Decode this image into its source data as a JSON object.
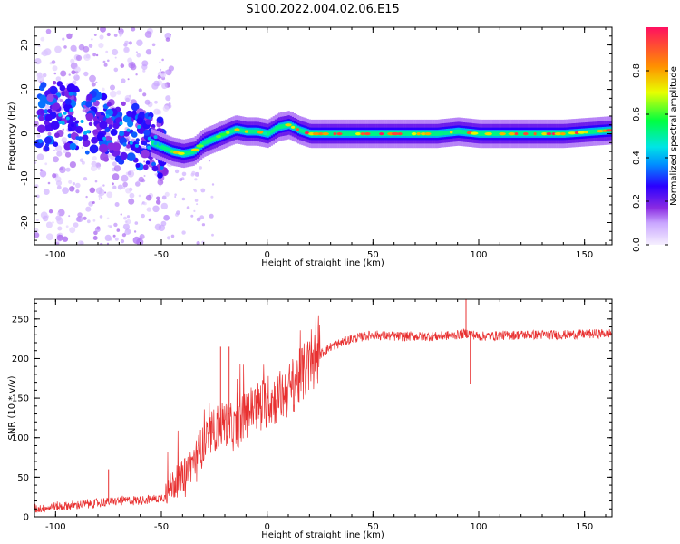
{
  "title": "S100.2022.004.02.06.E15",
  "colors": {
    "snr_line": "#e83030",
    "background": "#ffffff",
    "colormap": [
      "#f6f0ff",
      "#c9a6ff",
      "#8a2be2",
      "#2a00ff",
      "#0090ff",
      "#00e5e5",
      "#00ff40",
      "#e8ff00",
      "#ff9000",
      "#ff1060"
    ]
  },
  "chart_data": [
    {
      "type": "heatmap",
      "name": "spectrogram",
      "xlabel": "Height of straight line (km)",
      "ylabel": "Frequency (Hz)",
      "xlim": [
        -110,
        163
      ],
      "ylim": [
        -25,
        24
      ],
      "xticks": [
        -100,
        -50,
        0,
        50,
        100,
        150
      ],
      "xtick_labels": [
        "-100",
        "-50",
        "0",
        "50",
        "100",
        "150"
      ],
      "yticks": [
        -20,
        -10,
        0,
        10,
        20
      ],
      "ytick_labels": [
        "-20",
        "-10",
        "0",
        "10",
        "20"
      ],
      "ridge": {
        "x": [
          -110,
          -100,
          -90,
          -80,
          -70,
          -60,
          -55,
          -50,
          -45,
          -40,
          -35,
          -30,
          -25,
          -20,
          -15,
          -10,
          -5,
          0,
          5,
          10,
          15,
          20,
          30,
          40,
          60,
          80,
          90,
          100,
          120,
          140,
          163
        ],
        "frequency": [
          5,
          4,
          3,
          2,
          0,
          -1,
          -2,
          -3,
          -4,
          -4.5,
          -4,
          -2,
          -1,
          0,
          1,
          0.5,
          0.5,
          0,
          1.5,
          2,
          0.8,
          0,
          0,
          0,
          0,
          0,
          0.5,
          0,
          0,
          0,
          0.8
        ]
      },
      "colorbar": {
        "label": "Normalized spectral amplitude",
        "ticks": [
          0.0,
          0.2,
          0.4,
          0.6,
          0.8
        ],
        "tick_labels": [
          "0.0",
          "0.2",
          "0.4",
          "0.6",
          "0.8"
        ],
        "range": [
          0,
          1
        ]
      }
    },
    {
      "type": "line",
      "name": "snr",
      "xlabel": "Height of straight line (km)",
      "ylabel": "SNR (10 * v/v)",
      "xlim": [
        -110,
        163
      ],
      "ylim": [
        0,
        275
      ],
      "xticks": [
        -100,
        -50,
        0,
        50,
        100,
        150
      ],
      "xtick_labels": [
        "-100",
        "-50",
        "0",
        "50",
        "100",
        "150"
      ],
      "yticks": [
        0,
        50,
        100,
        150,
        200,
        250
      ],
      "ytick_labels": [
        "0",
        "50",
        "100",
        "150",
        "200",
        "250"
      ],
      "trend": {
        "x": [
          -110,
          -90,
          -70,
          -55,
          -48,
          -45,
          -40,
          -35,
          -30,
          -25,
          -20,
          -15,
          -10,
          -5,
          0,
          5,
          10,
          15,
          20,
          25,
          30,
          35,
          40,
          50,
          60,
          80,
          90,
          95,
          100,
          120,
          140,
          163
        ],
        "snr": [
          10,
          15,
          20,
          22,
          25,
          40,
          50,
          70,
          90,
          110,
          120,
          110,
          130,
          140,
          145,
          150,
          160,
          175,
          190,
          205,
          215,
          220,
          225,
          230,
          228,
          228,
          230,
          232,
          228,
          230,
          230,
          232
        ]
      },
      "spikes": [
        {
          "x": -75,
          "snr": 60
        },
        {
          "x": -22,
          "snr": 215
        },
        {
          "x": -18,
          "snr": 215
        },
        {
          "x": 94,
          "snr": 275
        },
        {
          "x": 96,
          "snr": 168
        }
      ]
    }
  ]
}
